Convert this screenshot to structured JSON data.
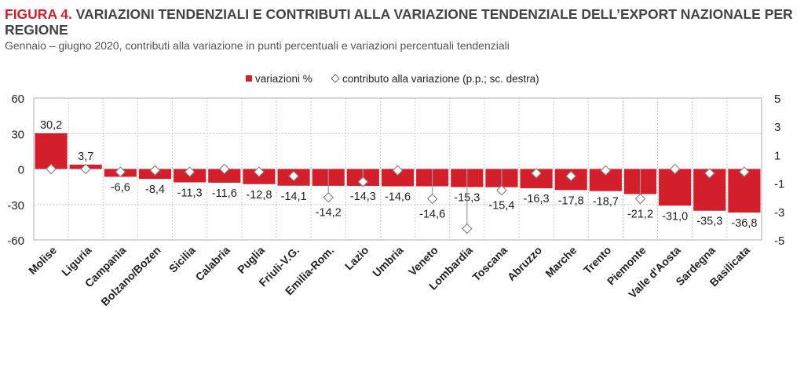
{
  "title": {
    "figure": "FIGURA 4.",
    "text": "VARIAZIONI TENDENZIALI E CONTRIBUTI ALLA VARIAZIONE TENDENZIALE DELL’EXPORT NAZIONALE PER REGIONE"
  },
  "subtitle": "Gennaio – giugno 2020, contributi alla variazione in punti percentuali e variazioni percentuali tendenziali",
  "colors": {
    "bar": "#d21f2b",
    "diamond_stroke": "#888888",
    "grid": "#c8c8c8"
  },
  "chart_data": {
    "type": "bar",
    "categories": [
      "Molise",
      "Liguria",
      "Campania",
      "Bolzano/Bozen",
      "Sicilia",
      "Calabria",
      "Puglia",
      "Friuli-V.G.",
      "Emilia-Rom.",
      "Lazio",
      "Umbria",
      "Veneto",
      "Lombardia",
      "Toscana",
      "Abruzzo",
      "Marche",
      "Trento",
      "Piemonte",
      "Valle d'Aosta",
      "Sardegna",
      "Basilicata"
    ],
    "series": [
      {
        "name": "variazioni %",
        "axis": "left",
        "values": [
          30.2,
          3.7,
          -6.6,
          -8.4,
          -11.3,
          -11.6,
          -12.8,
          -14.1,
          -14.2,
          -14.3,
          -14.6,
          -14.6,
          -15.3,
          -15.4,
          -16.3,
          -17.8,
          -18.7,
          -21.2,
          -31.0,
          -35.3,
          -36.8
        ],
        "labels": [
          "30,2",
          "3,7",
          "-6,6",
          "-8,4",
          "-11,3",
          "-11,6",
          "-12,8",
          "-14,1",
          "-14,2",
          "-14,3",
          "-14,6",
          "-14,6",
          "-15,3",
          "-15,4",
          "-16,3",
          "-17,8",
          "-18,7",
          "-21,2",
          "-31,0",
          "-35,3",
          "-36,8"
        ]
      },
      {
        "name": "contributo alla variazione (p.p.; sc. destra)",
        "axis": "right",
        "values": [
          0.0,
          0.0,
          -0.2,
          -0.1,
          -0.2,
          0.0,
          -0.2,
          -0.5,
          -2.0,
          -0.9,
          -0.1,
          -2.1,
          -4.2,
          -1.5,
          -0.3,
          -0.5,
          -0.1,
          -2.1,
          0.0,
          -0.3,
          -0.2
        ]
      }
    ],
    "ylim": [
      -60,
      60
    ],
    "yticks": [
      "60",
      "30",
      "0",
      "-30",
      "-60"
    ],
    "yticks_values": [
      60,
      30,
      0,
      -30,
      -60
    ],
    "y2lim": [
      -5,
      5
    ],
    "y2ticks": [
      "5",
      "3",
      "1",
      "-1",
      "-3",
      "-5"
    ],
    "y2ticks_values": [
      5,
      3,
      1,
      -1,
      -3,
      -5
    ],
    "legend": {
      "placement": "top-center",
      "items": [
        "variazioni %",
        "contributo alla variazione (p.p.; sc. destra)"
      ]
    },
    "grid": true
  }
}
